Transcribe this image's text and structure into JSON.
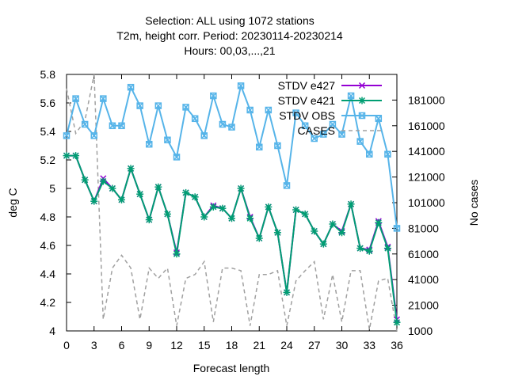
{
  "chart_data": {
    "type": "line",
    "title_lines": [
      "Selection: ALL using  1072 stations",
      "T2m, height corr.   Period: 20230114-20230214",
      "Hours:  00,03,...,21"
    ],
    "xlabel": "Forecast length",
    "ylabel": "deg C",
    "y2label": "No cases",
    "xlim": [
      0,
      36
    ],
    "ylim": [
      4,
      5.8
    ],
    "y2lim": [
      1000,
      201000
    ],
    "x_ticks": [
      0,
      3,
      6,
      9,
      12,
      15,
      18,
      21,
      24,
      27,
      30,
      33,
      36
    ],
    "y_ticks": [
      "4",
      "4.2",
      "4.4",
      "4.6",
      "4.8",
      "5",
      "5.2",
      "5.4",
      "5.6",
      "5.8"
    ],
    "y2_ticks": [
      "1000",
      "21000",
      "41000",
      "61000",
      "81000",
      "101000",
      "121000",
      "141000",
      "161000",
      "181000"
    ],
    "grid": false,
    "legend_position": "top-right",
    "x": [
      0,
      1,
      2,
      3,
      4,
      5,
      6,
      7,
      8,
      9,
      10,
      11,
      12,
      13,
      14,
      15,
      16,
      17,
      18,
      19,
      20,
      21,
      22,
      23,
      24,
      25,
      26,
      27,
      28,
      29,
      30,
      31,
      32,
      33,
      34,
      35,
      36
    ],
    "series": [
      {
        "name": "STDV e427",
        "axis": "y",
        "color": "#9400d3",
        "marker": "x",
        "values": [
          5.23,
          5.23,
          5.06,
          4.91,
          5.07,
          5.0,
          4.92,
          5.14,
          4.96,
          4.78,
          5.01,
          4.82,
          4.55,
          4.97,
          4.94,
          4.8,
          4.88,
          4.86,
          4.79,
          5.0,
          4.8,
          4.65,
          4.87,
          4.69,
          4.27,
          4.85,
          4.82,
          4.7,
          4.61,
          4.75,
          4.7,
          4.89,
          4.58,
          4.57,
          4.77,
          4.59,
          4.08
        ]
      },
      {
        "name": "STDV e421",
        "axis": "y",
        "color": "#009e73",
        "marker": "*",
        "values": [
          5.23,
          5.23,
          5.06,
          4.91,
          5.05,
          5.0,
          4.92,
          5.14,
          4.96,
          4.78,
          5.01,
          4.82,
          4.54,
          4.97,
          4.94,
          4.8,
          4.87,
          4.86,
          4.79,
          5.0,
          4.79,
          4.65,
          4.87,
          4.69,
          4.27,
          4.85,
          4.82,
          4.7,
          4.61,
          4.75,
          4.69,
          4.89,
          4.58,
          4.56,
          4.76,
          4.58,
          4.06
        ]
      },
      {
        "name": "STDV OBS",
        "axis": "y",
        "color": "#56b4e9",
        "marker": "box-x",
        "values": [
          5.37,
          5.63,
          5.45,
          5.37,
          5.63,
          5.44,
          5.44,
          5.71,
          5.58,
          5.31,
          5.58,
          5.34,
          5.22,
          5.57,
          5.49,
          5.37,
          5.65,
          5.45,
          5.43,
          5.72,
          5.55,
          5.29,
          5.55,
          5.3,
          5.02,
          5.53,
          5.44,
          5.35,
          5.38,
          5.45,
          5.38,
          5.65,
          5.33,
          5.24,
          5.49,
          5.24,
          4.72
        ]
      },
      {
        "name": "CASES",
        "axis": "y2",
        "color": "#a0a0a0",
        "dash": true,
        "values": [
          190000,
          155000,
          165000,
          201000,
          10000,
          50000,
          60000,
          50000,
          10000,
          50000,
          42000,
          50000,
          5000,
          42000,
          45000,
          55000,
          8000,
          50000,
          50000,
          48000,
          5000,
          45000,
          45000,
          48000,
          5000,
          40000,
          48000,
          55000,
          10000,
          45000,
          8000,
          48000,
          48000,
          2000,
          40000,
          42000,
          1000
        ]
      }
    ]
  }
}
